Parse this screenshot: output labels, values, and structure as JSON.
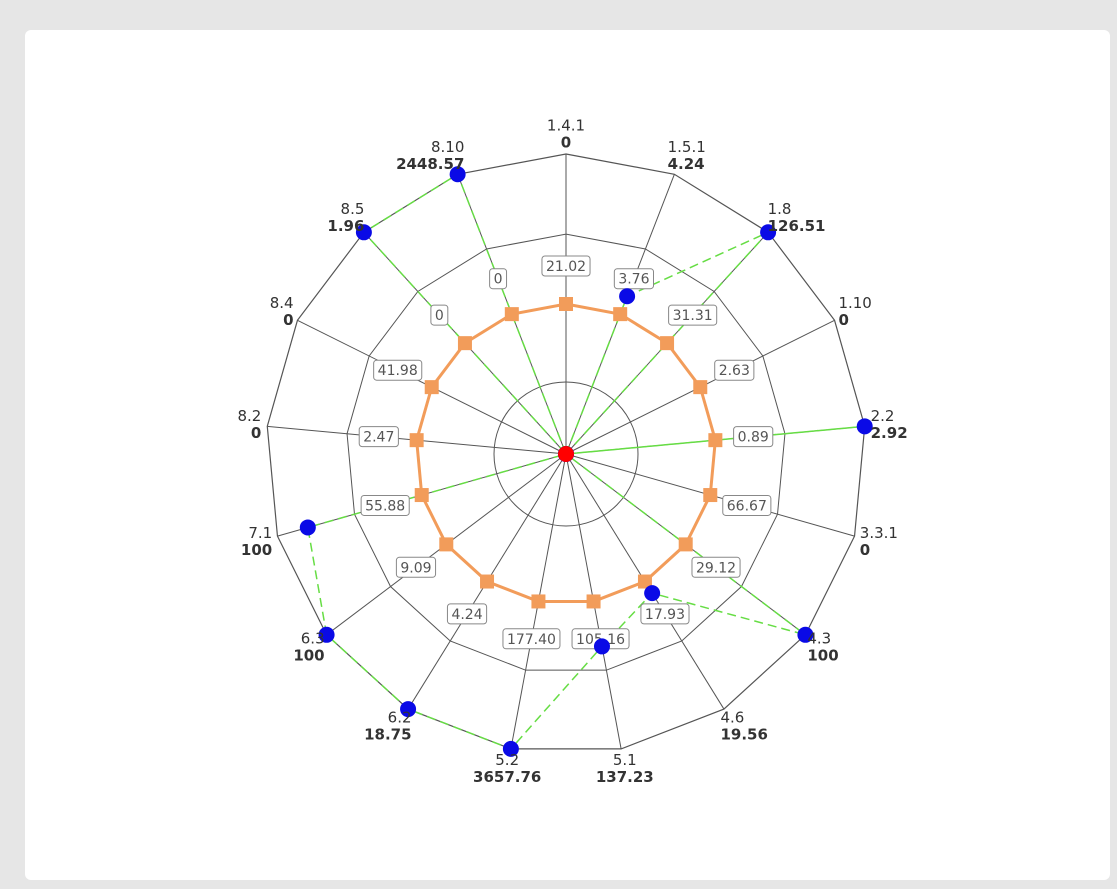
{
  "chart_data": {
    "type": "radar",
    "categories": [
      "1.4.1",
      "1.5.1",
      "1.8",
      "1.10",
      "2.2",
      "3.3.1",
      "4.3",
      "4.6",
      "5.1",
      "5.2",
      "6.2",
      "6.3",
      "7.1",
      "8.2",
      "8.4",
      "8.5",
      "8.10"
    ],
    "rlim": [
      0,
      2
    ],
    "series": [
      {
        "color": "#0a0ae6",
        "line_color": "#66dd44",
        "values": [
          0,
          4.24,
          126.51,
          0,
          2.92,
          0,
          100,
          19.56,
          137.23,
          3657.76,
          18.75,
          100,
          100,
          0,
          0,
          1.96,
          2448.57
        ]
      },
      {
        "color": "#f29c5a",
        "values": [
          21.02,
          3.76,
          31.31,
          2.63,
          0.89,
          66.67,
          29.12,
          17.93,
          105.16,
          177.4,
          4.24,
          9.09,
          55.88,
          2.47,
          41.98,
          0,
          0
        ],
        "value_labels": [
          "21.02",
          "3.76",
          "31.31",
          "2.63",
          "0.89",
          "66.67",
          "29.12",
          "17.93",
          "105.16",
          "177.40",
          "4.24",
          "9.09",
          "55.88",
          "2.47",
          "41.98",
          "0",
          "0"
        ]
      }
    ]
  }
}
